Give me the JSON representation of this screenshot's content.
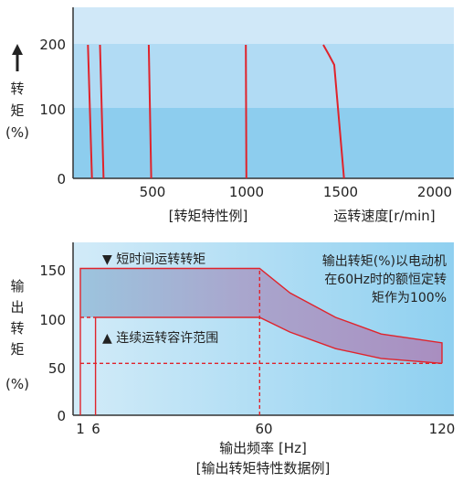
{
  "chart_data": [
    {
      "type": "line",
      "title": "",
      "xlabel": "运转速度[r/min]",
      "caption": "[转矩特性例]",
      "ylabel_chars": [
        "转",
        "矩"
      ],
      "ylabel_unit": "(%)",
      "ylabel_arrow": "arrow-up-icon",
      "xlim": [
        120,
        2000
      ],
      "ylim": [
        0,
        250
      ],
      "xticks": [
        "500",
        "1000",
        "1500",
        "2000"
      ],
      "yticks": [
        "0",
        "100",
        "200"
      ],
      "grid": false,
      "colors": {
        "curve": "#e0232b",
        "band_light": "#cfe7f7",
        "band_mid": "#b2dcf4",
        "band_dark": "#8ccdef"
      },
      "series": [
        {
          "points": [
            [
              157,
              200
            ],
            [
              178,
              0
            ]
          ]
        },
        {
          "points": [
            [
              221,
              200
            ],
            [
              240,
              0
            ]
          ]
        },
        {
          "points": [
            [
              480,
              200
            ],
            [
              493,
              0
            ]
          ]
        },
        {
          "points": [
            [
              996,
              200
            ],
            [
              999,
              0
            ]
          ]
        },
        {
          "points": [
            [
              1408,
              200
            ],
            [
              1438,
              185
            ],
            [
              1466,
              170
            ],
            [
              1518,
              0
            ]
          ]
        }
      ]
    },
    {
      "type": "area",
      "title": "",
      "xlabel": "输出频率 [Hz]",
      "caption": "[输出转矩特性数据例]",
      "ylabel_chars": [
        "输",
        "出",
        "转",
        "矩"
      ],
      "ylabel_unit": "(%)",
      "xlim": [
        0,
        120
      ],
      "ylim": [
        0,
        170
      ],
      "xticks": [
        {
          "value": 1,
          "label": "1"
        },
        {
          "value": 6,
          "label": "6"
        },
        {
          "value": 60,
          "label": "60"
        },
        {
          "value": 120,
          "label": "120"
        }
      ],
      "yticks": [
        "0",
        "50",
        "100",
        "150"
      ],
      "grid": false,
      "annotations": {
        "short_time": "▼ 短时间运转转矩",
        "continuous": "▲ 连续运转容许范围",
        "note_lines": [
          "输出转矩(%)以电动机",
          "在60Hz时的额恒定转",
          "矩作为100%"
        ]
      },
      "colors": {
        "curve": "#e0232b",
        "fill_start": "#9cc4de",
        "fill_end": "#a98ec0",
        "bg": "#b9e1f5"
      },
      "short_time_limit": [
        [
          1,
          150
        ],
        [
          60,
          150
        ],
        [
          70,
          125
        ],
        [
          85,
          100
        ],
        [
          100,
          83
        ],
        [
          120,
          74
        ]
      ],
      "continuous_limit": [
        [
          6,
          100
        ],
        [
          60,
          100
        ],
        [
          70,
          85
        ],
        [
          85,
          68
        ],
        [
          100,
          58
        ],
        [
          120,
          53
        ]
      ],
      "reference_level": 53
    }
  ]
}
